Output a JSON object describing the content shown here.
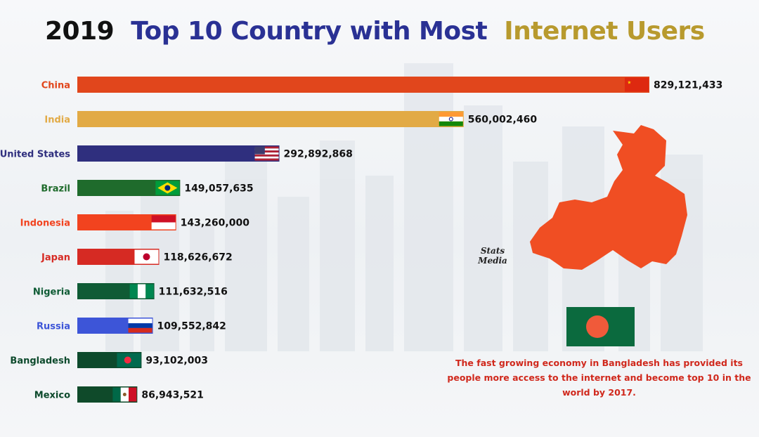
{
  "title": {
    "year": "2019",
    "part1": "Top 10 Country with Most",
    "part2": "Internet Users",
    "colors": {
      "year": "#111111",
      "part1": "#2a3194",
      "part2": "#b89a2e"
    }
  },
  "chart_data": {
    "type": "bar",
    "orientation": "horizontal",
    "categories": [
      "China",
      "India",
      "United States",
      "Brazil",
      "Indonesia",
      "Japan",
      "Nigeria",
      "Russia",
      "Bangladesh",
      "Mexico"
    ],
    "values": [
      829121433,
      560002460,
      292892868,
      149057635,
      143260000,
      118626672,
      111632516,
      109552842,
      93102003,
      86943521
    ],
    "value_labels": [
      "829,121,433",
      "560,002,460",
      "292,892,868",
      "149,057,635",
      "143,260,000",
      "118,626,672",
      "111,632,516",
      "109,552,842",
      "93,102,003",
      "86,943,521"
    ],
    "bar_colors": [
      "#e1461c",
      "#e2aa45",
      "#2f2f7e",
      "#1f6b2c",
      "#f2431f",
      "#d62a23",
      "#0f5b35",
      "#3d55d8",
      "#0d4a2c",
      "#0f4a2a"
    ],
    "label_colors": [
      "#e1461c",
      "#e2aa45",
      "#2f2f7e",
      "#1f6b2c",
      "#f2431f",
      "#d62a23",
      "#0f5b35",
      "#3d55d8",
      "#0d4a2c",
      "#0d4a2c"
    ],
    "flags": [
      "china-flag",
      "india-flag",
      "us-flag",
      "brazil-flag",
      "indonesia-flag",
      "japan-flag",
      "nigeria-flag",
      "russia-flag",
      "bangladesh-flag",
      "mexico-flag"
    ],
    "xlim": [
      0,
      829121433
    ],
    "grid": false
  },
  "logo": {
    "line1": "Stats",
    "line2": "Media"
  },
  "note": "The fast growing economy in Bangladesh has provided its people more access to the internet and become top 10 in the world by 2017."
}
